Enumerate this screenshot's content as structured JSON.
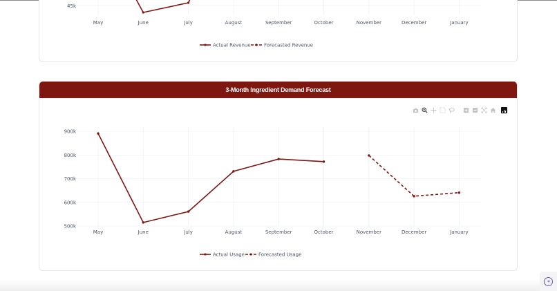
{
  "revenue_chart": {
    "y_tick_visible": "45k",
    "x_labels": [
      "May",
      "June",
      "July",
      "August",
      "September",
      "October",
      "November",
      "December",
      "January"
    ],
    "legend": [
      {
        "label": "Actual Revenue",
        "style": "solid"
      },
      {
        "label": "Forecasted Revenue",
        "style": "dash"
      }
    ]
  },
  "demand_chart": {
    "title": "3-Month Ingredient Demand Forecast",
    "header_color": "#7f1711",
    "line_color": "#7f1711",
    "modebar": [
      "camera-icon",
      "zoom-icon",
      "pan-icon",
      "box-select-icon",
      "lasso-icon",
      "zoom-in-icon",
      "zoom-out-icon",
      "autoscale-icon",
      "home-icon",
      "plotly-logo-icon"
    ],
    "legend": [
      {
        "label": "Actual Usage",
        "style": "solid"
      },
      {
        "label": "Forecasted Usage",
        "style": "dash"
      }
    ]
  },
  "chart_data": [
    {
      "type": "line",
      "title": "",
      "categories": [
        "May",
        "June",
        "July",
        "August",
        "September",
        "October",
        "November",
        "December",
        "January"
      ],
      "series": [
        {
          "name": "Actual Revenue",
          "values": [
            null,
            43.5,
            44.8,
            null,
            null,
            null,
            null,
            null,
            null
          ]
        },
        {
          "name": "Forecasted Revenue",
          "values": [
            null,
            null,
            null,
            null,
            null,
            null,
            null,
            null,
            null
          ]
        }
      ],
      "yticks_visible": [
        "45k"
      ],
      "xlabel": "",
      "ylabel": "",
      "legend_position": "bottom-center"
    },
    {
      "type": "line",
      "title": "3-Month Ingredient Demand Forecast",
      "categories": [
        "May",
        "June",
        "July",
        "August",
        "September",
        "October",
        "November",
        "December",
        "January"
      ],
      "series": [
        {
          "name": "Actual Usage",
          "values": [
            891000,
            515000,
            561000,
            731000,
            783000,
            772000,
            null,
            null,
            null
          ]
        },
        {
          "name": "Forecasted Usage",
          "values": [
            null,
            null,
            null,
            null,
            null,
            null,
            798000,
            626000,
            641000
          ]
        }
      ],
      "yticks": [
        "500k",
        "600k",
        "700k",
        "800k",
        "900k"
      ],
      "ylim": [
        500000,
        900000
      ],
      "xlabel": "",
      "ylabel": "",
      "grid": true,
      "legend_position": "bottom-center"
    }
  ],
  "sidebar_toggle": {
    "icon": "collapse-left-icon",
    "glyph": "«"
  }
}
